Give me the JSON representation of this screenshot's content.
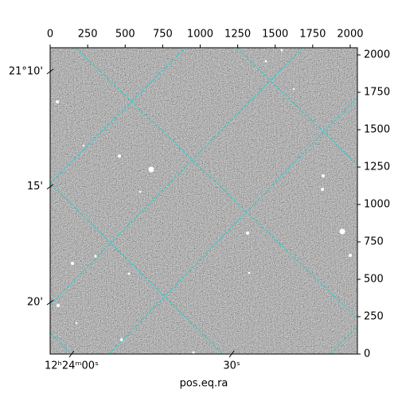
{
  "chart_data": {
    "type": "image",
    "xlabel": "pos.eq.ra",
    "xlim": [
      0,
      2048
    ],
    "ylim": [
      0,
      2048
    ],
    "xticks": [
      0,
      250,
      500,
      750,
      1000,
      1250,
      1500,
      1750,
      2000
    ],
    "yticks": [
      0,
      250,
      500,
      750,
      1000,
      1250,
      1500,
      1750,
      2000
    ],
    "ra_ticks": [
      {
        "value": 143,
        "label": "12ʰ24ᵐ00ˢ"
      },
      {
        "value": 1210,
        "label": "30ˢ"
      }
    ],
    "dec_ticks": [
      {
        "value": 1889,
        "label": "21°10'"
      },
      {
        "value": 1119,
        "label": "15'"
      },
      {
        "value": 345,
        "label": "20'"
      }
    ],
    "grid_color": "#20d0d0"
  }
}
